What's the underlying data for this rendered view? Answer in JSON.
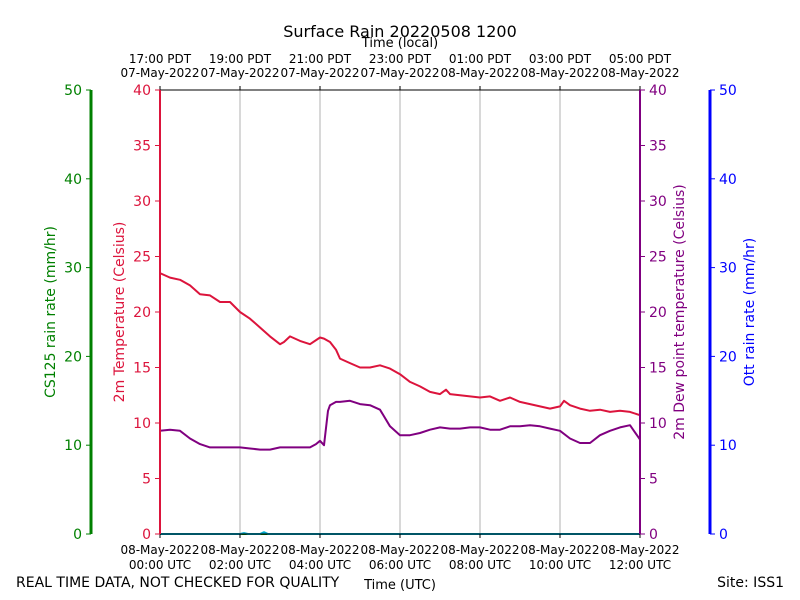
{
  "chart_data": {
    "type": "line",
    "title": "Surface Rain 20220508 1200",
    "top_axis": {
      "label": "Time (local)",
      "ticks": [
        {
          "hours": 0,
          "line1": "17:00 PDT",
          "line2": "07-May-2022"
        },
        {
          "hours": 2,
          "line1": "19:00 PDT",
          "line2": "07-May-2022"
        },
        {
          "hours": 4,
          "line1": "21:00 PDT",
          "line2": "07-May-2022"
        },
        {
          "hours": 6,
          "line1": "23:00 PDT",
          "line2": "07-May-2022"
        },
        {
          "hours": 8,
          "line1": "01:00 PDT",
          "line2": "08-May-2022"
        },
        {
          "hours": 10,
          "line1": "03:00 PDT",
          "line2": "08-May-2022"
        },
        {
          "hours": 12,
          "line1": "05:00 PDT",
          "line2": "08-May-2022"
        }
      ]
    },
    "bottom_axis": {
      "label": "Time (UTC)",
      "ticks": [
        {
          "hours": 0,
          "line1": "08-May-2022",
          "line2": "00:00 UTC"
        },
        {
          "hours": 2,
          "line1": "08-May-2022",
          "line2": "02:00 UTC"
        },
        {
          "hours": 4,
          "line1": "08-May-2022",
          "line2": "04:00 UTC"
        },
        {
          "hours": 6,
          "line1": "08-May-2022",
          "line2": "06:00 UTC"
        },
        {
          "hours": 8,
          "line1": "08-May-2022",
          "line2": "08:00 UTC"
        },
        {
          "hours": 10,
          "line1": "08-May-2022",
          "line2": "10:00 UTC"
        },
        {
          "hours": 12,
          "line1": "08-May-2022",
          "line2": "12:00 UTC"
        }
      ]
    },
    "xlim": [
      0,
      12
    ],
    "y_axes": [
      {
        "id": "cs125",
        "label": "CS125 rain rate (mm/hr)",
        "color": "#008000",
        "ylim": [
          0,
          50
        ],
        "ticks": [
          0,
          10,
          20,
          30,
          40,
          50
        ]
      },
      {
        "id": "temp",
        "label": "2m Temperature (Celsius)",
        "color": "#dc143c",
        "ylim": [
          0,
          40
        ],
        "ticks": [
          0,
          5,
          10,
          15,
          20,
          25,
          30,
          35,
          40
        ]
      },
      {
        "id": "dew",
        "label": "2m Dew point temperature (Celsius)",
        "color": "#800080",
        "ylim": [
          0,
          40
        ],
        "ticks": [
          0,
          5,
          10,
          15,
          20,
          25,
          30,
          35,
          40
        ]
      },
      {
        "id": "ott",
        "label": "Ott rain rate (mm/hr)",
        "color": "#0000ff",
        "ylim": [
          0,
          50
        ],
        "ticks": [
          0,
          10,
          20,
          30,
          40,
          50
        ]
      }
    ],
    "series": [
      {
        "name": "2m Temperature",
        "axis": "temp",
        "color": "#dc143c",
        "x": [
          0,
          0.25,
          0.5,
          0.75,
          1.0,
          1.25,
          1.5,
          1.75,
          2.0,
          2.25,
          2.5,
          2.75,
          3.0,
          3.1,
          3.25,
          3.5,
          3.75,
          4.0,
          4.1,
          4.25,
          4.4,
          4.5,
          4.75,
          5.0,
          5.25,
          5.5,
          5.75,
          6.0,
          6.25,
          6.5,
          6.75,
          7.0,
          7.15,
          7.25,
          7.5,
          7.75,
          8.0,
          8.25,
          8.5,
          8.75,
          9.0,
          9.25,
          9.5,
          9.75,
          10.0,
          10.1,
          10.25,
          10.5,
          10.75,
          11.0,
          11.25,
          11.5,
          11.75,
          12.0
        ],
        "values": [
          23.5,
          23.1,
          22.9,
          22.4,
          21.6,
          21.5,
          20.9,
          20.9,
          20.0,
          19.4,
          18.6,
          17.8,
          17.1,
          17.3,
          17.8,
          17.4,
          17.1,
          17.7,
          17.6,
          17.3,
          16.6,
          15.8,
          15.4,
          15.0,
          15.0,
          15.2,
          14.9,
          14.4,
          13.7,
          13.3,
          12.8,
          12.6,
          13.0,
          12.6,
          12.5,
          12.4,
          12.3,
          12.4,
          12.0,
          12.3,
          11.9,
          11.7,
          11.5,
          11.3,
          11.5,
          12.0,
          11.6,
          11.3,
          11.1,
          11.2,
          11.0,
          11.1,
          11.0,
          10.7
        ]
      },
      {
        "name": "2m Dew point temperature",
        "axis": "dew",
        "color": "#800080",
        "x": [
          0,
          0.25,
          0.5,
          0.75,
          1.0,
          1.25,
          1.5,
          1.75,
          2.0,
          2.25,
          2.5,
          2.75,
          3.0,
          3.25,
          3.5,
          3.75,
          3.9,
          4.0,
          4.1,
          4.2,
          4.25,
          4.4,
          4.5,
          4.75,
          5.0,
          5.25,
          5.5,
          5.75,
          6.0,
          6.25,
          6.5,
          6.75,
          7.0,
          7.25,
          7.5,
          7.75,
          8.0,
          8.25,
          8.5,
          8.75,
          9.0,
          9.25,
          9.5,
          9.75,
          10.0,
          10.25,
          10.5,
          10.75,
          11.0,
          11.25,
          11.5,
          11.75,
          12.0
        ],
        "values": [
          9.3,
          9.4,
          9.3,
          8.6,
          8.1,
          7.8,
          7.8,
          7.8,
          7.8,
          7.7,
          7.6,
          7.6,
          7.8,
          7.8,
          7.8,
          7.8,
          8.1,
          8.4,
          8.0,
          11.1,
          11.6,
          11.9,
          11.9,
          12.0,
          11.7,
          11.6,
          11.2,
          9.7,
          8.9,
          8.9,
          9.1,
          9.4,
          9.6,
          9.5,
          9.5,
          9.6,
          9.6,
          9.4,
          9.4,
          9.7,
          9.7,
          9.8,
          9.7,
          9.5,
          9.3,
          8.6,
          8.2,
          8.2,
          8.9,
          9.3,
          9.6,
          9.8,
          8.5
        ]
      },
      {
        "name": "CS125 rain rate",
        "axis": "cs125",
        "color": "#008000",
        "x": [
          0,
          12
        ],
        "values": [
          0,
          0
        ]
      },
      {
        "name": "Ott rain rate",
        "axis": "ott",
        "color": "#00aacc",
        "x": [
          0,
          2.0,
          2.1,
          2.2,
          2.5,
          2.6,
          2.7,
          12
        ],
        "values": [
          0,
          0,
          0.1,
          0,
          0,
          0.2,
          0,
          0
        ]
      }
    ],
    "footer": {
      "left": "REAL TIME DATA, NOT CHECKED FOR QUALITY",
      "right": "Site: ISS1"
    },
    "grid": "vertical"
  }
}
